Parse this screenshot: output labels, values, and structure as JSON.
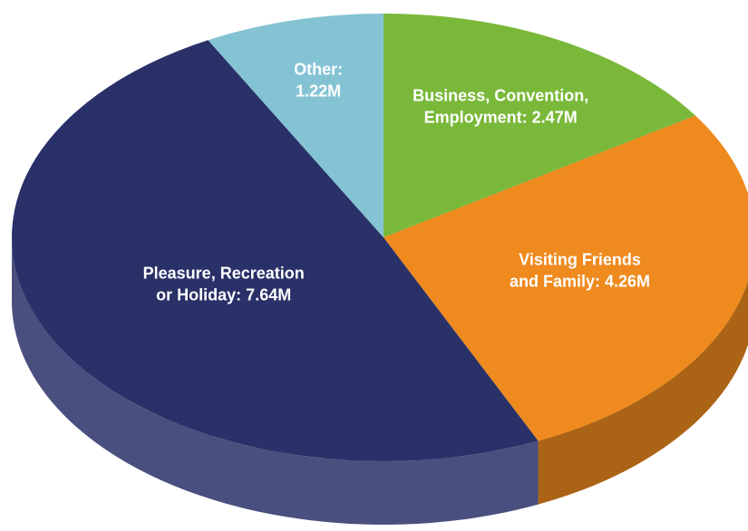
{
  "chart_data": {
    "type": "pie3d",
    "values": [
      2.47,
      4.26,
      7.64,
      1.22
    ],
    "value_labels": [
      [
        "Business, Convention,",
        "Employment: 2.47M"
      ],
      [
        "Visiting Friends",
        "and Family: 4.26M"
      ],
      [
        "Pleasure, Recreation",
        "or Holiday: 7.64M"
      ],
      [
        "Other:",
        "1.22M"
      ]
    ],
    "colors": [
      "#7ab83a",
      "#ee8a1e",
      "#2a3168",
      "#84c3d4"
    ]
  }
}
